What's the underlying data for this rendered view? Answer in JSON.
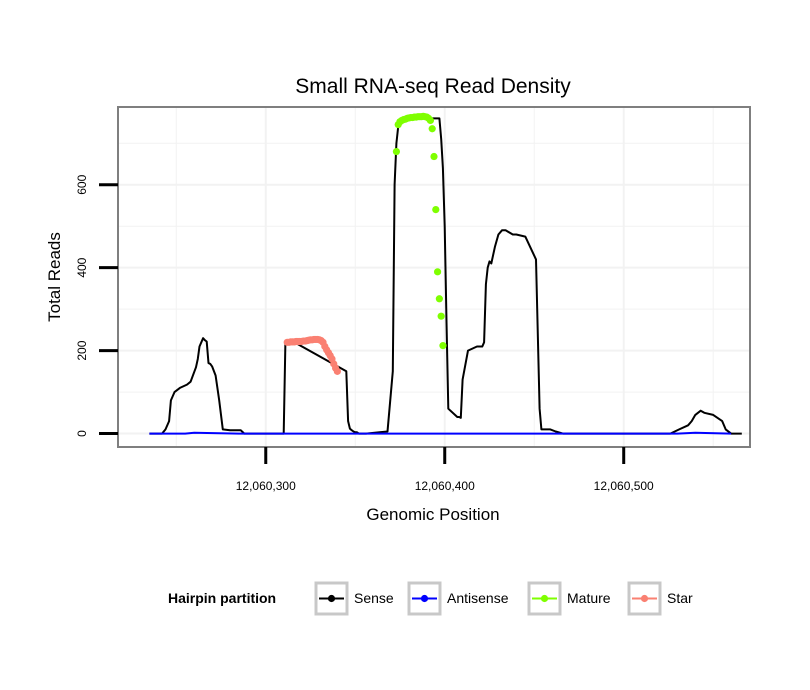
{
  "chart_data": {
    "type": "line",
    "title": "Small RNA-seq Read Density",
    "xlabel": "Genomic Position",
    "ylabel": "Total Reads",
    "xlim": [
      12060218,
      12060570
    ],
    "ylim": [
      -30,
      785
    ],
    "x_ticks": [
      12060300,
      12060400,
      12060500
    ],
    "x_tick_labels": [
      "12,060,300",
      "12,060,400",
      "12,060,500"
    ],
    "y_ticks": [
      0,
      200,
      400,
      600
    ],
    "y_tick_labels": [
      "0",
      "200",
      "400",
      "600"
    ],
    "grid": true,
    "legend": {
      "title": "Hairpin partition",
      "position": "bottom",
      "entries": [
        {
          "name": "Sense",
          "color": "#000000"
        },
        {
          "name": "Antisense",
          "color": "#0000ff"
        },
        {
          "name": "Mature",
          "color": "#7fff00"
        },
        {
          "name": "Star",
          "color": "#fa8072"
        }
      ]
    },
    "series": [
      {
        "name": "Sense",
        "color": "#000000",
        "style": "line",
        "x": [
          12060235,
          12060242,
          12060244,
          12060246,
          12060247,
          12060249,
          12060252,
          12060256,
          12060258,
          12060261,
          12060262,
          12060263,
          12060265,
          12060266,
          12060267,
          12060268,
          12060269,
          12060270,
          12060272,
          12060273,
          12060274,
          12060276,
          12060280,
          12060281,
          12060282,
          12060284,
          12060286,
          12060288,
          12060310,
          12060311,
          12060312,
          12060313,
          12060314,
          12060345,
          12060346,
          12060347,
          12060348,
          12060349,
          12060350,
          12060351,
          12060352,
          12060356,
          12060368,
          12060371,
          12060372,
          12060373,
          12060374,
          12060375,
          12060376,
          12060397,
          12060398,
          12060399,
          12060400,
          12060401,
          12060402,
          12060407,
          12060408,
          12060409,
          12060410,
          12060413,
          12060418,
          12060421,
          12060422,
          12060423,
          12060424,
          12060425,
          12060426,
          12060427,
          12060428,
          12060430,
          12060432,
          12060434,
          12060438,
          12060440,
          12060445,
          12060451,
          12060453,
          12060454,
          12060455,
          12060459,
          12060462,
          12060466,
          12060495,
          12060510,
          12060526,
          12060531,
          12060536,
          12060538,
          12060540,
          12060543,
          12060545,
          12060550,
          12060555,
          12060557,
          12060560,
          12060566
        ],
        "y": [
          0,
          0,
          10,
          30,
          80,
          100,
          110,
          118,
          125,
          160,
          180,
          210,
          230,
          225,
          222,
          170,
          168,
          162,
          140,
          110,
          80,
          10,
          8,
          8,
          8,
          8,
          8,
          0,
          0,
          220,
          222,
          222,
          225,
          150,
          30,
          12,
          8,
          5,
          3,
          3,
          0,
          0,
          5,
          150,
          600,
          700,
          740,
          750,
          760,
          760,
          710,
          640,
          500,
          270,
          60,
          40,
          40,
          38,
          130,
          200,
          210,
          210,
          220,
          360,
          400,
          415,
          410,
          430,
          450,
          480,
          490,
          490,
          480,
          480,
          475,
          420,
          60,
          10,
          10,
          10,
          5,
          0,
          0,
          0,
          0,
          10,
          20,
          30,
          45,
          55,
          50,
          45,
          30,
          10,
          0,
          0
        ]
      },
      {
        "name": "Antisense",
        "color": "#0000ff",
        "style": "line",
        "x": [
          12060235,
          12060255,
          12060260,
          12060285,
          12060530,
          12060540,
          12060560
        ],
        "y": [
          0,
          0,
          2,
          0,
          0,
          2,
          0
        ]
      },
      {
        "name": "Mature",
        "color": "#7fff00",
        "style": "points",
        "x": [
          12060373,
          12060374,
          12060375,
          12060376,
          12060377,
          12060378,
          12060379,
          12060380,
          12060381,
          12060382,
          12060383,
          12060384,
          12060385,
          12060386,
          12060387,
          12060388,
          12060389,
          12060390,
          12060391,
          12060392,
          12060393,
          12060394,
          12060395,
          12060396,
          12060397,
          12060398,
          12060399
        ],
        "y": [
          680,
          745,
          752,
          755,
          757,
          758,
          760,
          761,
          762,
          762,
          763,
          763,
          764,
          764,
          764,
          765,
          764,
          763,
          760,
          755,
          735,
          668,
          540,
          390,
          325,
          283,
          212
        ]
      },
      {
        "name": "Star",
        "color": "#fa8072",
        "style": "points",
        "x": [
          12060312,
          12060313,
          12060314,
          12060315,
          12060316,
          12060317,
          12060318,
          12060319,
          12060320,
          12060321,
          12060322,
          12060323,
          12060324,
          12060325,
          12060326,
          12060327,
          12060328,
          12060329,
          12060330,
          12060331,
          12060332,
          12060333,
          12060334,
          12060335,
          12060336,
          12060337,
          12060338,
          12060339,
          12060340
        ],
        "y": [
          220,
          220,
          221,
          221,
          221,
          222,
          222,
          222,
          222,
          223,
          223,
          224,
          225,
          226,
          226,
          227,
          227,
          227,
          226,
          224,
          220,
          210,
          202,
          195,
          188,
          180,
          168,
          158,
          150
        ]
      }
    ]
  }
}
